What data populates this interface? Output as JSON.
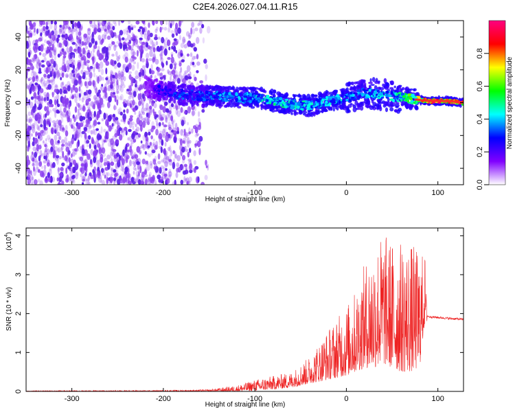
{
  "title": "C2E4.2026.027.04.11.R15",
  "chart_data": [
    {
      "type": "heatmap",
      "name": "spectrogram",
      "xlabel": "Height of straight line (km)",
      "ylabel": "Frequency (Hz)",
      "xlim": [
        -350,
        128
      ],
      "ylim": [
        -50,
        50
      ],
      "xticks": [
        -300,
        -200,
        -100,
        0,
        100
      ],
      "xtick_labels": [
        "-300",
        "-200",
        "-100",
        "0",
        "100"
      ],
      "yticks": [
        -40,
        -20,
        0,
        20,
        40
      ],
      "ytick_labels": [
        "-40",
        "-20",
        "0",
        "20",
        "40"
      ],
      "colorbar": {
        "label": "Normalized spectral amplitude",
        "range": [
          0,
          1
        ],
        "ticks": [
          0.0,
          0.2,
          0.4,
          0.6,
          0.8
        ],
        "tick_labels": [
          "0.0",
          "0.2",
          "0.4",
          "0.6",
          "0.8"
        ],
        "colors": [
          "#ffffff",
          "#8000ff",
          "#0000ff",
          "#00ffff",
          "#00ff00",
          "#ffff00",
          "#ff0000",
          "#ff0080"
        ]
      },
      "noise_region": {
        "x_range": [
          -350,
          -160
        ],
        "freq_range": [
          -50,
          50
        ]
      },
      "signal_track": {
        "x": [
          -220,
          -200,
          -180,
          -160,
          -140,
          -120,
          -100,
          -80,
          -60,
          -40,
          -20,
          0,
          20,
          40,
          60,
          75,
          90,
          110,
          128
        ],
        "freq": [
          10,
          7,
          5,
          4,
          4,
          3,
          3,
          1,
          -1,
          -2,
          1,
          3,
          6,
          5,
          3,
          2,
          1,
          1,
          0
        ],
        "amplitude": [
          0.2,
          0.3,
          0.35,
          0.35,
          0.4,
          0.4,
          0.45,
          0.5,
          0.5,
          0.45,
          0.45,
          0.45,
          0.4,
          0.45,
          0.5,
          0.7,
          1.0,
          1.0,
          0.95
        ]
      }
    },
    {
      "type": "line",
      "name": "snr",
      "xlabel": "Height of straight line (km)",
      "ylabel": "SNR (10 * v/v)",
      "multiplier_label": "(x10",
      "multiplier_exp": "4",
      "multiplier_close": ")",
      "xlim": [
        -350,
        128
      ],
      "ylim": [
        0,
        4.2
      ],
      "xticks": [
        -300,
        -200,
        -100,
        0,
        100
      ],
      "xtick_labels": [
        "-300",
        "-200",
        "-100",
        "0",
        "100"
      ],
      "yticks": [
        0,
        1,
        2,
        3,
        4
      ],
      "ytick_labels": [
        "0",
        "1",
        "2",
        "3",
        "4"
      ],
      "color": "#ee2222",
      "envelope": {
        "x": [
          -350,
          -200,
          -150,
          -120,
          -100,
          -80,
          -60,
          -40,
          -20,
          0,
          10,
          20,
          30,
          40,
          50,
          60,
          70,
          80,
          86,
          88,
          90,
          100,
          110,
          128
        ],
        "upper": [
          0.02,
          0.03,
          0.05,
          0.15,
          0.3,
          0.4,
          0.5,
          0.9,
          1.6,
          2.2,
          2.6,
          3.3,
          3.8,
          4.1,
          3.9,
          3.85,
          3.85,
          3.6,
          3.5,
          1.95,
          1.92,
          1.9,
          1.88,
          1.85
        ],
        "floor": [
          0,
          0,
          0,
          0,
          0.02,
          0.05,
          0.1,
          0.2,
          0.3,
          0.4,
          0.5,
          0.6,
          0.6,
          0.7,
          0.6,
          0.5,
          0.5,
          0.6,
          1.8,
          1.8,
          1.8,
          1.82,
          1.82,
          1.82
        ]
      }
    }
  ]
}
